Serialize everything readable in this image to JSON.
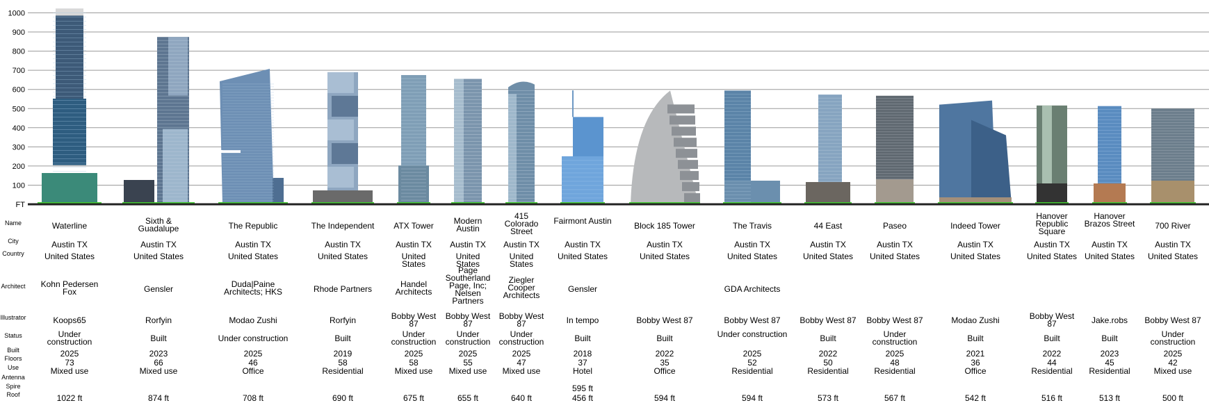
{
  "axis": {
    "unit_label": "FT",
    "ticks": [
      100,
      200,
      300,
      400,
      500,
      600,
      700,
      800,
      900,
      1000
    ],
    "range": [
      0,
      1000
    ]
  },
  "row_labels": {
    "name": "Name",
    "city": "City",
    "country": "Country",
    "architect": "Architect",
    "illustrator": "Illustrator",
    "status": "Status",
    "built": "Built",
    "floors": "Floors",
    "use": "Use",
    "antenna": "Antenna",
    "spire": "Spire",
    "roof": "Roof"
  },
  "colors": {
    "grid": "#9a9a9a",
    "ground": "#222222",
    "footprint": "#44cc33"
  },
  "buildings": [
    {
      "name": "Waterline",
      "city": "Austin TX",
      "country": "United States",
      "architect": "Kohn Pedersen Fox",
      "illustrator": "Koops65",
      "status": "Under construction",
      "built": "2025",
      "floors": "73",
      "use": "Mixed use",
      "antenna": "",
      "spire": "",
      "roof": "1022 ft",
      "height_ft": 1022,
      "style": "waterline"
    },
    {
      "name": "Sixth & Guadalupe",
      "city": "Austin TX",
      "country": "United States",
      "architect": "Gensler",
      "illustrator": "Rorfyin",
      "status": "Built",
      "built": "2023",
      "floors": "66",
      "use": "Mixed use",
      "antenna": "",
      "spire": "",
      "roof": "874 ft",
      "height_ft": 874,
      "style": "sixth"
    },
    {
      "name": "The Republic",
      "city": "Austin TX",
      "country": "United States",
      "architect": "Duda|Paine Architects; HKS",
      "illustrator": "Modao Zushi",
      "status": "Under construction",
      "built": "2025",
      "floors": "46",
      "use": "Office",
      "antenna": "",
      "spire": "",
      "roof": "708 ft",
      "height_ft": 708,
      "style": "republic"
    },
    {
      "name": "The Independent",
      "city": "Austin TX",
      "country": "United States",
      "architect": "Rhode Partners",
      "illustrator": "Rorfyin",
      "status": "Built",
      "built": "2019",
      "floors": "58",
      "use": "Residential",
      "antenna": "",
      "spire": "",
      "roof": "690 ft",
      "height_ft": 690,
      "style": "independent"
    },
    {
      "name": "ATX Tower",
      "city": "Austin TX",
      "country": "United States",
      "architect": "Handel Architects",
      "illustrator": "Bobby West 87",
      "status": "Under construction",
      "built": "2025",
      "floors": "58",
      "use": "Mixed use",
      "antenna": "",
      "spire": "",
      "roof": "675 ft",
      "height_ft": 675,
      "style": "atx"
    },
    {
      "name": "Modern Austin",
      "city": "Austin TX",
      "country": "United States",
      "architect": "Page Southerland Page, Inc; Nelsen Partners",
      "illustrator": "Bobby West 87",
      "status": "Under construction",
      "built": "2025",
      "floors": "55",
      "use": "Mixed use",
      "antenna": "",
      "spire": "",
      "roof": "655 ft",
      "height_ft": 655,
      "style": "modern"
    },
    {
      "name": "415 Colorado Street",
      "city": "Austin TX",
      "country": "United States",
      "architect": "Ziegler Cooper Architects",
      "illustrator": "Bobby West 87",
      "status": "Under construction",
      "built": "2025",
      "floors": "47",
      "use": "Mixed use",
      "antenna": "",
      "spire": "",
      "roof": "640 ft",
      "height_ft": 640,
      "style": "colorado"
    },
    {
      "name": "Fairmont Austin",
      "city": "Austin TX",
      "country": "United States",
      "architect": "Gensler",
      "illustrator": "In tempo",
      "status": "Built",
      "built": "2018",
      "floors": "37",
      "use": "Hotel",
      "antenna": "",
      "spire": "595 ft",
      "roof": "456 ft",
      "height_ft": 456,
      "spire_ft": 595,
      "style": "fairmont"
    },
    {
      "name": "Block 185 Tower",
      "city": "Austin TX",
      "country": "United States",
      "architect": "",
      "illustrator": "Bobby West 87",
      "status": "Built",
      "built": "2022",
      "floors": "35",
      "use": "Office",
      "antenna": "",
      "spire": "",
      "roof": "594 ft",
      "height_ft": 594,
      "style": "block185"
    },
    {
      "name": "The Travis",
      "city": "Austin TX",
      "country": "United States",
      "architect": "GDA Architects",
      "illustrator": "Bobby West 87",
      "status": "Under construction",
      "built": "2025",
      "floors": "52",
      "use": "Residential",
      "antenna": "",
      "spire": "",
      "roof": "594 ft",
      "height_ft": 594,
      "style": "travis"
    },
    {
      "name": "44 East",
      "city": "Austin TX",
      "country": "United States",
      "architect": "",
      "illustrator": "Bobby West 87",
      "status": "Built",
      "built": "2022",
      "floors": "50",
      "use": "Residential",
      "antenna": "",
      "spire": "",
      "roof": "573 ft",
      "height_ft": 573,
      "style": "east44"
    },
    {
      "name": "Paseo",
      "city": "Austin TX",
      "country": "United States",
      "architect": "",
      "illustrator": "Bobby West 87",
      "status": "Under construction",
      "built": "2025",
      "floors": "48",
      "use": "Residential",
      "antenna": "",
      "spire": "",
      "roof": "567 ft",
      "height_ft": 567,
      "style": "paseo"
    },
    {
      "name": "Indeed Tower",
      "city": "Austin TX",
      "country": "United States",
      "architect": "",
      "illustrator": "Modao Zushi",
      "status": "Built",
      "built": "2021",
      "floors": "36",
      "use": "Office",
      "antenna": "",
      "spire": "",
      "roof": "542 ft",
      "height_ft": 542,
      "style": "indeed"
    },
    {
      "name": "Hanover Republic Square",
      "city": "Austin TX",
      "country": "United States",
      "architect": "",
      "illustrator": "Bobby West 87",
      "status": "Built",
      "built": "2022",
      "floors": "44",
      "use": "Residential",
      "antenna": "",
      "spire": "",
      "roof": "516 ft",
      "height_ft": 516,
      "style": "hanover"
    },
    {
      "name": "Hanover Brazos Street",
      "city": "Austin TX",
      "country": "United States",
      "architect": "",
      "illustrator": "Jake.robs",
      "status": "Built",
      "built": "2023",
      "floors": "45",
      "use": "Residential",
      "antenna": "",
      "spire": "",
      "roof": "513 ft",
      "height_ft": 513,
      "style": "brazos"
    },
    {
      "name": "700 River",
      "city": "Austin TX",
      "country": "United States",
      "architect": "",
      "illustrator": "Bobby West 87",
      "status": "Under construction",
      "built": "2025",
      "floors": "42",
      "use": "Mixed use",
      "antenna": "",
      "spire": "",
      "roof": "500 ft",
      "height_ft": 500,
      "style": "river"
    }
  ]
}
